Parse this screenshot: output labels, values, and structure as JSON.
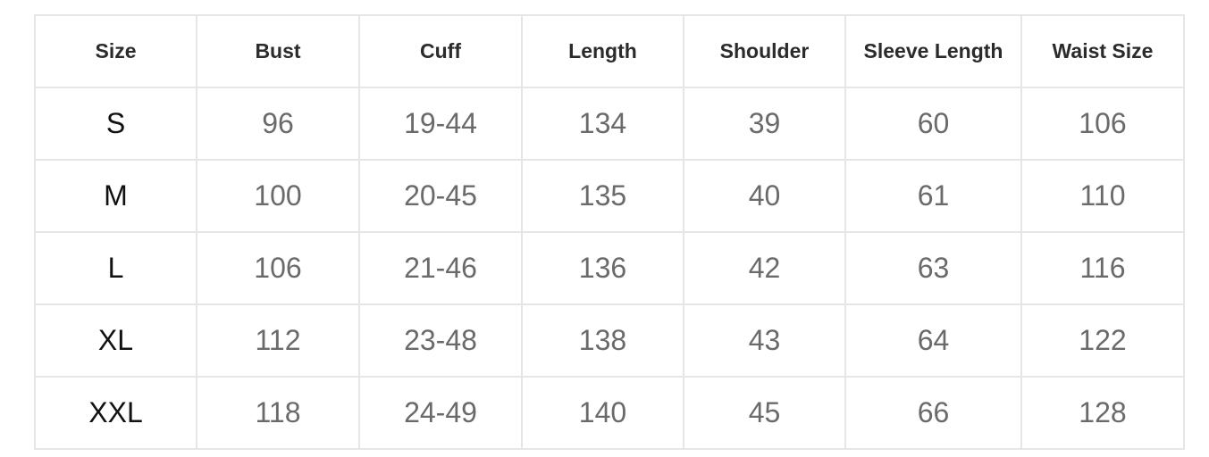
{
  "headers": [
    "Size",
    "Bust",
    "Cuff",
    "Length",
    "Shoulder",
    "Sleeve Length",
    "Waist Size"
  ],
  "rows": [
    [
      "S",
      "96",
      "19-44",
      "134",
      "39",
      "60",
      "106"
    ],
    [
      "M",
      "100",
      "20-45",
      "135",
      "40",
      "61",
      "110"
    ],
    [
      "L",
      "106",
      "21-46",
      "136",
      "42",
      "63",
      "116"
    ],
    [
      "XL",
      "112",
      "23-48",
      "138",
      "43",
      "64",
      "122"
    ],
    [
      "XXL",
      "118",
      "24-49",
      "140",
      "45",
      "66",
      "128"
    ]
  ],
  "colors": {
    "border": "#e6e6e6",
    "header_text": "#2b2b2b",
    "size_text": "#111111",
    "value_text": "#6a6a6a"
  }
}
